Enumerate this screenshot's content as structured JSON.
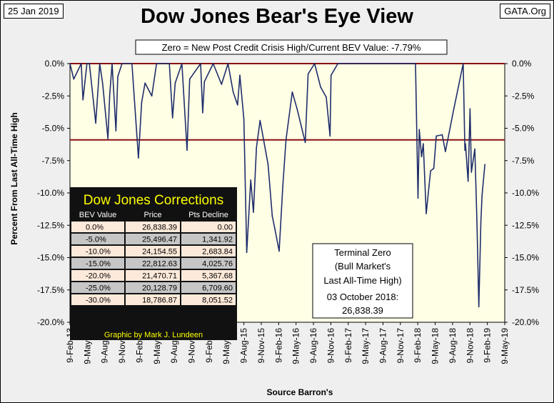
{
  "date_label": "25 Jan 2019",
  "source_label": "GATA.Org",
  "chart_data": {
    "type": "line",
    "title": "Dow Jones Bear's Eye View",
    "subtitle": "Zero = New Post Credit Crisis High/Current BEV Value:  -7.79%",
    "ylabel": "Percent From Last All-Time High",
    "xlabel": "Source Barron's",
    "ylim": [
      -20,
      0
    ],
    "yticks": [
      "0.0%",
      "-2.5%",
      "-5.0%",
      "-7.5%",
      "-10.0%",
      "-12.5%",
      "-15.0%",
      "-17.5%",
      "-20.0%"
    ],
    "ytick_values": [
      0,
      -2.5,
      -5,
      -7.5,
      -10,
      -12.5,
      -15,
      -17.5,
      -20
    ],
    "xticks": [
      "9-Feb-13",
      "9-May-13",
      "9-Aug-13",
      "9-Nov-13",
      "9-Feb-14",
      "9-May-14",
      "9-Aug-14",
      "9-Nov-14",
      "9-Feb-15",
      "9-May-15",
      "9-Aug-15",
      "9-Nov-15",
      "9-Feb-16",
      "9-May-16",
      "9-Aug-16",
      "9-Nov-16",
      "9-Feb-17",
      "9-May-17",
      "9-Aug-17",
      "9-Nov-17",
      "9-Feb-18",
      "9-May-18",
      "9-Aug-18",
      "9-Nov-18",
      "9-Feb-19",
      "9-May-19"
    ],
    "reference_lines": [
      0,
      -5.9
    ],
    "grid": false,
    "series": [
      {
        "color": "#1f2d6b",
        "x": [
          "9-Feb-13",
          "1-Mar-13",
          "9-Apr-13",
          "18-Apr-13",
          "9-May-13",
          "22-May-13",
          "24-Jun-13",
          "15-Jul-13",
          "30-Jul-13",
          "27-Aug-13",
          "5-Sep-13",
          "18-Sep-13",
          "8-Oct-13",
          "18-Oct-13",
          "9-Nov-13",
          "31-Dec-13",
          "3-Feb-14",
          "20-Feb-14",
          "10-Mar-14",
          "14-Apr-14",
          "9-May-14",
          "15-Jun-14",
          "15-Jul-14",
          "1-Aug-14",
          "15-Aug-14",
          "19-Sep-14",
          "16-Oct-14",
          "30-Oct-14",
          "26-Dec-14",
          "6-Jan-15",
          "15-Jan-15",
          "2-Mar-15",
          "15-Apr-15",
          "19-May-15",
          "15-Jun-15",
          "8-Jul-15",
          "20-Jul-15",
          "10-Aug-15",
          "25-Aug-15",
          "15-Sep-15",
          "29-Sep-15",
          "15-Oct-15",
          "3-Nov-15",
          "15-Dec-15",
          "6-Jan-16",
          "20-Jan-16",
          "11-Feb-16",
          "1-Mar-16",
          "18-Mar-16",
          "20-Apr-16",
          "15-May-16",
          "27-Jun-16",
          "12-Jul-16",
          "15-Aug-16",
          "15-Sep-16",
          "15-Oct-16",
          "4-Nov-16",
          "9-Nov-16",
          "15-Dec-16",
          "15-Mar-17",
          "15-Jun-17",
          "15-Sep-17",
          "15-Dec-17",
          "26-Jan-18",
          "8-Feb-18",
          "15-Feb-18",
          "27-Feb-18",
          "8-Mar-18",
          "23-Mar-18",
          "15-Apr-18",
          "2-May-18",
          "15-May-18",
          "15-Jun-18",
          "2-Jul-18",
          "15-Aug-18",
          "3-Oct-18",
          "12-Oct-18",
          "15-Oct-18",
          "29-Oct-18",
          "8-Nov-18",
          "15-Nov-18",
          "3-Dec-18",
          "14-Dec-18",
          "24-Dec-18",
          "4-Jan-19",
          "10-Jan-19",
          "25-Jan-19"
        ],
        "y": [
          0,
          -1.2,
          0,
          -2.8,
          0,
          0,
          -4.6,
          0,
          -1.5,
          -5.8,
          -2.5,
          0,
          -5.2,
          -1,
          0,
          0,
          -7.3,
          -3,
          -1.5,
          -2.5,
          0,
          0,
          0,
          -4.2,
          -1.5,
          0,
          -6.7,
          -1.2,
          0,
          -3.8,
          -1.4,
          0,
          -1.6,
          0,
          -2.2,
          -3.2,
          -0.9,
          -4.3,
          -14.6,
          -9,
          -11.5,
          -6.5,
          -4.4,
          -7.8,
          -11.8,
          -12.8,
          -14.5,
          -9.5,
          -5.9,
          -2.2,
          -3.5,
          -6.1,
          -0.8,
          0,
          -1.8,
          -2.6,
          -5.6,
          -0.9,
          0,
          0,
          0,
          0,
          0,
          0,
          -10.4,
          -5.1,
          -7.2,
          -6.2,
          -11.6,
          -8.3,
          -8.1,
          -5.6,
          -5.5,
          -6.8,
          -3.5,
          0,
          -6.7,
          -6.2,
          -9.1,
          -3.5,
          -8.4,
          -6.6,
          -12.1,
          -18.8,
          -12.2,
          -10.2,
          -7.8
        ],
        "x_axis_start": "9-Feb-13",
        "x_axis_end": "9-May-19"
      }
    ]
  },
  "corrections_table": {
    "title": "Dow Jones Corrections",
    "headers": [
      "BEV Value",
      "Price",
      "Pts Decline"
    ],
    "rows": [
      [
        "0.0%",
        "26,838.39",
        "0.00"
      ],
      [
        "-5.0%",
        "25,496.47",
        "1,341.92"
      ],
      [
        "-10.0%",
        "24,154.55",
        "2,683.84"
      ],
      [
        "-15.0%",
        "22,812.63",
        "4,025.76"
      ],
      [
        "-20.0%",
        "21,470.71",
        "5,367.68"
      ],
      [
        "-25.0%",
        "20,128.79",
        "6,709.60"
      ],
      [
        "-30.0%",
        "18,786.87",
        "8,051.52"
      ]
    ],
    "footer": "Graphic by Mark J. Lundeen"
  },
  "terminal_zero_box": {
    "lines": [
      "Terminal Zero",
      "(Bull Market's",
      "Last All-Time High)",
      "03 October 2018:",
      "26,838.39"
    ]
  },
  "colors": {
    "plot_bg": "#ffffe6",
    "series": "#1f2d6b",
    "reference": "#8b1010",
    "table_bg": "#111111",
    "table_title": "#ffff00",
    "table_header": "#ffffff",
    "row_light": "#fde9d9",
    "row_dark": "#c6c6c6"
  }
}
